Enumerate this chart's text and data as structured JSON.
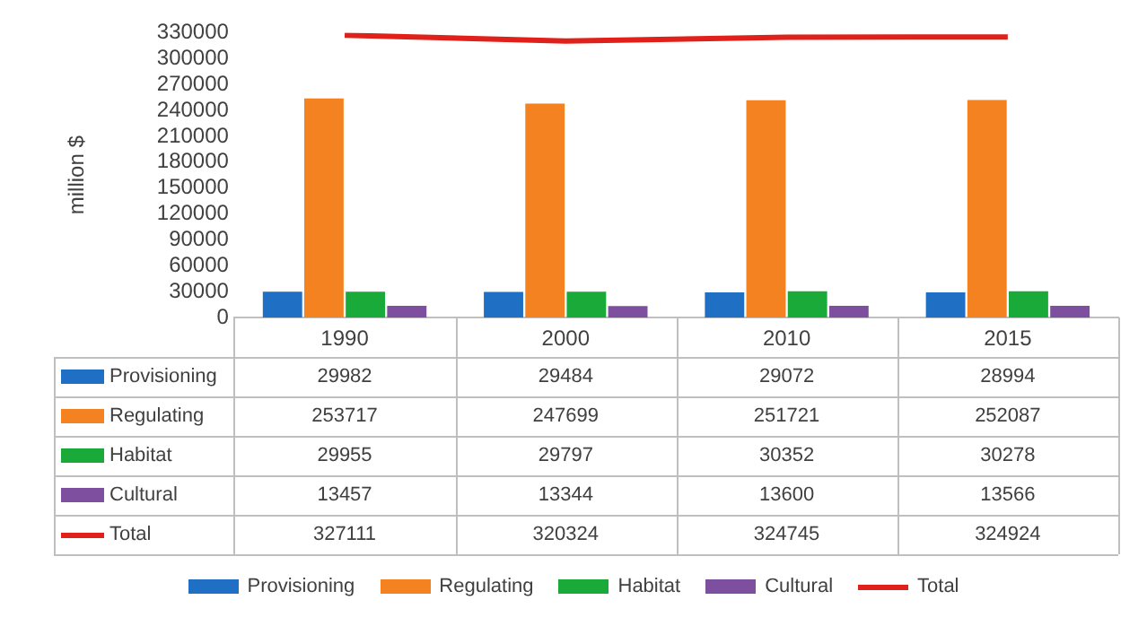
{
  "chart_data": {
    "type": "bar",
    "categories": [
      "1990",
      "2000",
      "2010",
      "2015"
    ],
    "ylabel": "million $",
    "ylim": [
      0,
      330000
    ],
    "yticks": [
      0,
      30000,
      60000,
      90000,
      120000,
      150000,
      180000,
      210000,
      240000,
      270000,
      300000,
      330000
    ],
    "legend": "bottom",
    "data_labels": true,
    "series": [
      {
        "name": "Provisioning",
        "color": "#1f6fc5",
        "values": [
          29982,
          29484,
          29072,
          28994
        ]
      },
      {
        "name": "Regulating",
        "color": "#f58220",
        "values": [
          253717,
          247699,
          251721,
          252087
        ]
      },
      {
        "name": "Habitat",
        "color": "#1aaa3a",
        "values": [
          29955,
          29797,
          30352,
          30278
        ]
      },
      {
        "name": "Cultural",
        "color": "#7d4f9e",
        "values": [
          13457,
          13344,
          13600,
          13566
        ]
      },
      {
        "name": "Total",
        "type": "line",
        "color": "#e0201b",
        "values": [
          327111,
          320324,
          324745,
          324924
        ]
      }
    ]
  }
}
